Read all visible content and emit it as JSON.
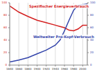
{
  "chart_data": {
    "type": "line",
    "x": [
      1840,
      1860,
      1880,
      1900,
      1920,
      1940,
      1950,
      1960,
      1970,
      1980,
      1990,
      2000,
      2010
    ],
    "xlim": [
      1840,
      2010
    ],
    "xticks": [
      1840,
      1860,
      1880,
      1900,
      1920,
      1940,
      1960,
      1980,
      2000
    ],
    "ylim": [
      0,
      100
    ],
    "yticks": [
      0,
      20,
      40,
      60,
      80,
      100
    ],
    "y2lim": [
      0,
      100
    ],
    "y2ticks": [
      0,
      20,
      40,
      60,
      80,
      100
    ],
    "grid": true,
    "series": [
      {
        "name": "Spezifischer Energieverbrauch",
        "color": "#d42020",
        "values": [
          95,
          85,
          78,
          72,
          68,
          64,
          62,
          60,
          56,
          55,
          58,
          64,
          64
        ]
      },
      {
        "name": "Weltweiter Pro-Kopf-Verbrauch",
        "color": "#3344aa",
        "axis": "y2",
        "values": [
          5,
          8,
          12,
          18,
          24,
          32,
          40,
          55,
          72,
          88,
          96,
          97,
          98
        ]
      }
    ]
  }
}
